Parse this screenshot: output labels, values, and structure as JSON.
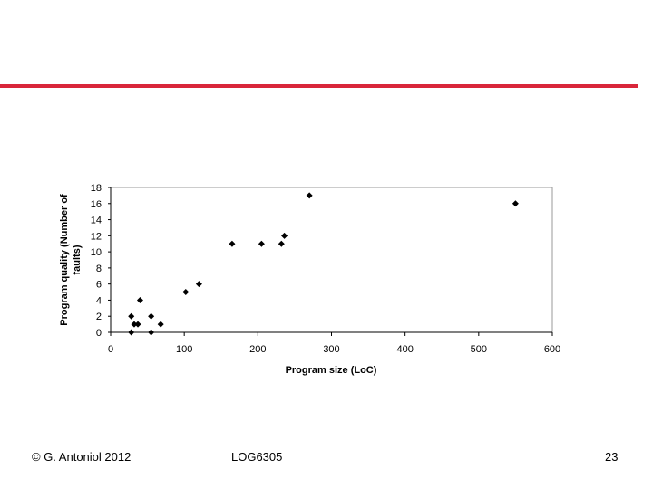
{
  "slide": {
    "copyright": "© G. Antoniol 2012",
    "course": "LOG6305",
    "page_number": "23",
    "accent_color": "#d9263a"
  },
  "chart_data": {
    "type": "scatter",
    "xlabel": "Program size (LoC)",
    "ylabel_lines": [
      "Program quality (Number of",
      "faults)"
    ],
    "xlim": [
      0,
      600
    ],
    "ylim": [
      0,
      18
    ],
    "x_ticks": [
      "0",
      "100",
      "200",
      "300",
      "400",
      "500",
      "600"
    ],
    "y_ticks": [
      "0",
      "2",
      "4",
      "6",
      "8",
      "10",
      "12",
      "14",
      "16",
      "18"
    ],
    "grid": false,
    "marker": "diamond",
    "points": [
      {
        "x": 28,
        "y": 2
      },
      {
        "x": 28,
        "y": 0
      },
      {
        "x": 32,
        "y": 1
      },
      {
        "x": 37,
        "y": 1
      },
      {
        "x": 40,
        "y": 4
      },
      {
        "x": 55,
        "y": 2
      },
      {
        "x": 55,
        "y": 0
      },
      {
        "x": 68,
        "y": 1
      },
      {
        "x": 102,
        "y": 5
      },
      {
        "x": 120,
        "y": 6
      },
      {
        "x": 165,
        "y": 11
      },
      {
        "x": 205,
        "y": 11
      },
      {
        "x": 232,
        "y": 11
      },
      {
        "x": 236,
        "y": 12
      },
      {
        "x": 270,
        "y": 17
      },
      {
        "x": 550,
        "y": 16
      }
    ]
  }
}
